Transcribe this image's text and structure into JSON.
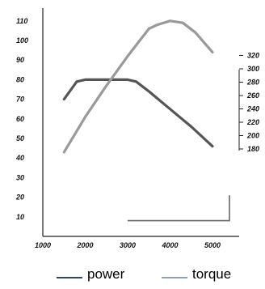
{
  "chart_data": {
    "type": "line",
    "x_ticks": [
      1000,
      2000,
      3000,
      4000,
      5000
    ],
    "y_left_ticks": [
      10,
      20,
      30,
      40,
      50,
      60,
      70,
      80,
      90,
      100,
      110
    ],
    "y_right_ticks": [
      180,
      200,
      220,
      240,
      260,
      280,
      300,
      320
    ],
    "xlim": [
      1000,
      5500
    ],
    "ylim_left": [
      0,
      110
    ],
    "ylim_right": [
      180,
      320
    ],
    "grid": false,
    "legend_position": "bottom",
    "series": [
      {
        "name": "power",
        "color": "#555555",
        "axis": "left",
        "x": [
          1500,
          1800,
          2000,
          2500,
          3000,
          3200,
          3500,
          4000,
          4500,
          5000
        ],
        "y": [
          70,
          79,
          80,
          80,
          80,
          79,
          74,
          65,
          56,
          46
        ]
      },
      {
        "name": "torque",
        "color": "#999999",
        "axis": "left",
        "x": [
          1500,
          2000,
          2500,
          3000,
          3500,
          3700,
          4000,
          4300,
          4600,
          5000
        ],
        "y": [
          43,
          61,
          77,
          92,
          106,
          108,
          110,
          109,
          104,
          94
        ]
      }
    ],
    "marker_path": {
      "color": "#666666",
      "x": [
        3000,
        5400,
        5400
      ],
      "y": [
        8,
        8,
        21
      ]
    },
    "legend": [
      {
        "label": "power",
        "color": "#2d4a63"
      },
      {
        "label": "torque",
        "color": "#8aa6b4"
      }
    ]
  }
}
